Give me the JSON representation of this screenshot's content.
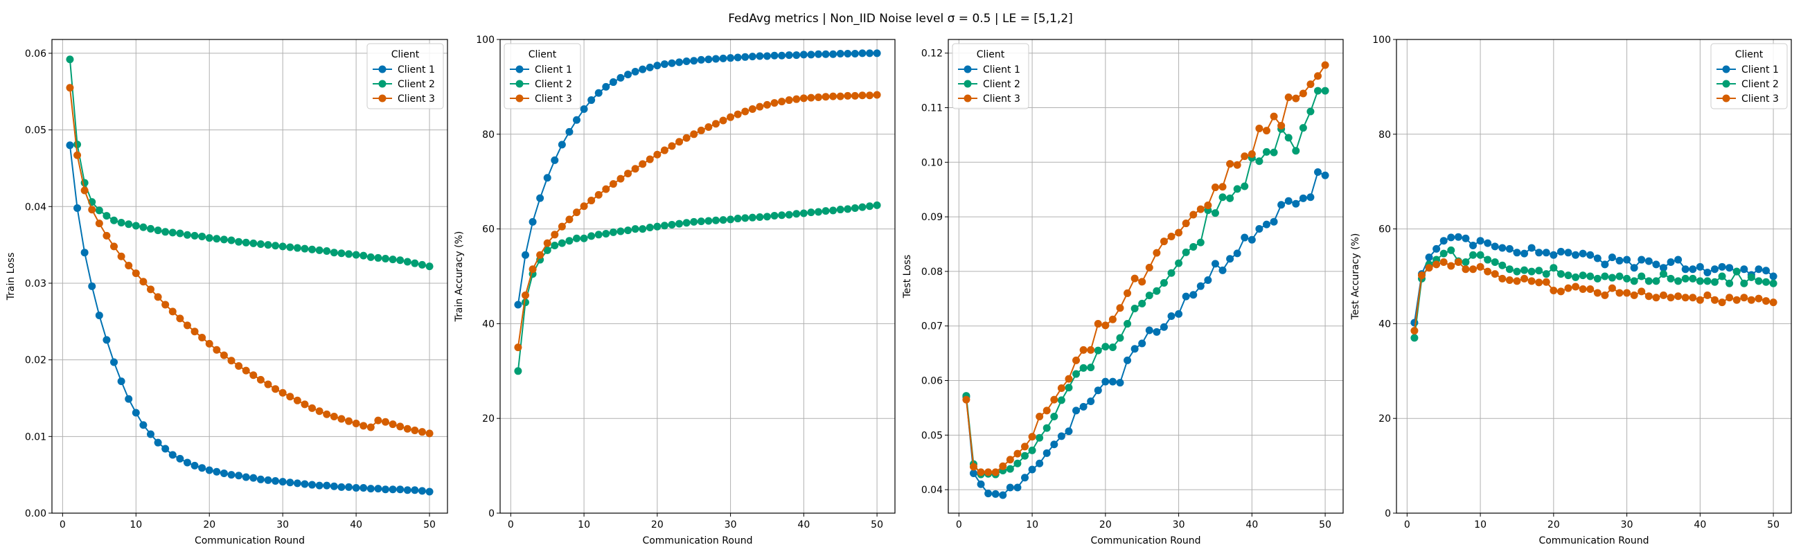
{
  "figure": {
    "title": "FedAvg metrics | Non_IID Noise level σ = 0.5 | LE = [5,1,2]"
  },
  "series_colors": {
    "Client 1": "#0072b2",
    "Client 2": "#009e73",
    "Client 3": "#d55e00"
  },
  "chart_data": [
    {
      "type": "line",
      "xlabel": "Communication Round",
      "ylabel": "Train Loss",
      "xlim": [
        -1.45,
        52.45
      ],
      "ylim": [
        0,
        0.0618
      ],
      "xticks": [
        0,
        10,
        20,
        30,
        40,
        50
      ],
      "yticks": [
        0.0,
        0.01,
        0.02,
        0.03,
        0.04,
        0.05,
        0.06
      ],
      "ytick_labels": [
        "0.00",
        "0.01",
        "0.02",
        "0.03",
        "0.04",
        "0.05",
        "0.06"
      ],
      "grid": true,
      "legend": {
        "title": "Client",
        "position": "top-right",
        "entries": [
          "Client 1",
          "Client 2",
          "Client 3"
        ]
      },
      "series": [
        {
          "name": "Client 1",
          "values": [
            0.048,
            0.0398,
            0.034,
            0.0296,
            0.0258,
            0.0226,
            0.0197,
            0.0172,
            0.0149,
            0.0131,
            0.0115,
            0.0103,
            0.0092,
            0.0084,
            0.0076,
            0.0071,
            0.0066,
            0.0062,
            0.0059,
            0.0056,
            0.0054,
            0.0052,
            0.005,
            0.0049,
            0.0047,
            0.0046,
            0.0044,
            0.0043,
            0.0042,
            0.0041,
            0.004,
            0.0039,
            0.0038,
            0.0037,
            0.0036,
            0.0036,
            0.0035,
            0.0034,
            0.0034,
            0.0033,
            0.0033,
            0.0032,
            0.0032,
            0.0031,
            0.0031,
            0.0031,
            0.003,
            0.003,
            0.0029,
            0.0028
          ]
        },
        {
          "name": "Client 2",
          "values": [
            0.0592,
            0.0481,
            0.0431,
            0.0406,
            0.0395,
            0.0388,
            0.0382,
            0.0379,
            0.0377,
            0.0375,
            0.0373,
            0.0371,
            0.0369,
            0.0367,
            0.0366,
            0.0365,
            0.0363,
            0.0362,
            0.0361,
            0.0359,
            0.0358,
            0.0357,
            0.0356,
            0.0354,
            0.0353,
            0.0352,
            0.0351,
            0.035,
            0.0349,
            0.0348,
            0.0347,
            0.0346,
            0.0345,
            0.0344,
            0.0343,
            0.0342,
            0.034,
            0.0339,
            0.0338,
            0.0337,
            0.0336,
            0.0334,
            0.0333,
            0.0332,
            0.0331,
            0.033,
            0.0328,
            0.0326,
            0.0324,
            0.0322
          ]
        },
        {
          "name": "Client 3",
          "values": [
            0.0555,
            0.0467,
            0.0421,
            0.0396,
            0.0378,
            0.0362,
            0.0348,
            0.0335,
            0.0323,
            0.0313,
            0.0302,
            0.0292,
            0.0282,
            0.0272,
            0.0263,
            0.0254,
            0.0245,
            0.0237,
            0.0229,
            0.0221,
            0.0213,
            0.0206,
            0.0199,
            0.0192,
            0.0186,
            0.018,
            0.0174,
            0.0168,
            0.0162,
            0.0157,
            0.0152,
            0.0147,
            0.0142,
            0.0137,
            0.0133,
            0.0129,
            0.0126,
            0.0123,
            0.012,
            0.0117,
            0.0114,
            0.0112,
            0.0121,
            0.0119,
            0.0116,
            0.0113,
            0.011,
            0.0108,
            0.0106,
            0.0104
          ]
        }
      ]
    },
    {
      "type": "line",
      "xlabel": "Communication Round",
      "ylabel": "Train Accuracy (%)",
      "xlim": [
        -1.45,
        52.45
      ],
      "ylim": [
        0,
        100
      ],
      "xticks": [
        0,
        10,
        20,
        30,
        40,
        50
      ],
      "yticks": [
        0,
        20,
        40,
        60,
        80,
        100
      ],
      "ytick_labels": [
        "0",
        "20",
        "40",
        "60",
        "80",
        "100"
      ],
      "grid": true,
      "legend": {
        "title": "Client",
        "position": "top-left",
        "entries": [
          "Client 1",
          "Client 2",
          "Client 3"
        ]
      },
      "series": [
        {
          "name": "Client 1",
          "values": [
            44.0,
            54.5,
            61.5,
            66.5,
            70.8,
            74.5,
            77.8,
            80.5,
            83.0,
            85.3,
            87.2,
            88.7,
            90.0,
            91.0,
            91.9,
            92.6,
            93.2,
            93.7,
            94.1,
            94.5,
            94.8,
            95.0,
            95.2,
            95.4,
            95.5,
            95.7,
            95.8,
            95.9,
            96.0,
            96.1,
            96.2,
            96.3,
            96.4,
            96.5,
            96.5,
            96.6,
            96.6,
            96.7,
            96.7,
            96.8,
            96.8,
            96.9,
            96.9,
            96.9,
            97.0,
            97.0,
            97.0,
            97.1,
            97.1,
            97.1
          ]
        },
        {
          "name": "Client 2",
          "values": [
            30.0,
            44.5,
            50.5,
            53.5,
            55.5,
            56.5,
            57.0,
            57.5,
            58.0,
            58.0,
            58.5,
            58.8,
            59.0,
            59.3,
            59.5,
            59.7,
            60.0,
            60.0,
            60.3,
            60.5,
            60.7,
            60.9,
            61.1,
            61.3,
            61.5,
            61.6,
            61.7,
            61.8,
            61.9,
            62.0,
            62.2,
            62.3,
            62.4,
            62.5,
            62.6,
            62.8,
            62.9,
            63.0,
            63.2,
            63.3,
            63.5,
            63.6,
            63.8,
            63.9,
            64.1,
            64.2,
            64.4,
            64.6,
            64.8,
            65.0
          ]
        },
        {
          "name": "Client 3",
          "values": [
            35.0,
            46.0,
            51.5,
            54.5,
            57.0,
            58.8,
            60.5,
            62.0,
            63.5,
            64.8,
            66.0,
            67.2,
            68.4,
            69.5,
            70.6,
            71.7,
            72.7,
            73.7,
            74.7,
            75.7,
            76.6,
            77.5,
            78.4,
            79.2,
            80.0,
            80.8,
            81.5,
            82.2,
            82.9,
            83.6,
            84.2,
            84.8,
            85.3,
            85.8,
            86.2,
            86.6,
            86.9,
            87.2,
            87.4,
            87.6,
            87.7,
            87.8,
            87.9,
            88.0,
            88.0,
            88.1,
            88.1,
            88.2,
            88.2,
            88.3
          ]
        }
      ]
    },
    {
      "type": "line",
      "xlabel": "Communication Round",
      "ylabel": "Test Loss",
      "xlim": [
        -1.45,
        52.45
      ],
      "ylim": [
        0.0357,
        0.1225
      ],
      "xticks": [
        0,
        10,
        20,
        30,
        40,
        50
      ],
      "yticks": [
        0.04,
        0.05,
        0.06,
        0.07,
        0.08,
        0.09,
        0.1,
        0.11,
        0.12
      ],
      "ytick_labels": [
        "0.04",
        "0.05",
        "0.06",
        "0.07",
        "0.08",
        "0.09",
        "0.10",
        "0.11",
        "0.12"
      ],
      "grid": true,
      "legend": {
        "title": "Client",
        "position": "top-left",
        "entries": [
          "Client 1",
          "Client 2",
          "Client 3"
        ]
      },
      "series": [
        {
          "name": "Client 1",
          "values": [
            0.057,
            0.043,
            0.041,
            0.0393,
            0.0392,
            0.039,
            0.0404,
            0.0404,
            0.0422,
            0.0437,
            0.0448,
            0.0467,
            0.0483,
            0.0498,
            0.0507,
            0.0545,
            0.0552,
            0.0562,
            0.0582,
            0.0598,
            0.0598,
            0.0596,
            0.0637,
            0.0658,
            0.0668,
            0.0692,
            0.0689,
            0.0698,
            0.0718,
            0.0722,
            0.0754,
            0.0757,
            0.0773,
            0.0784,
            0.0814,
            0.0802,
            0.0823,
            0.0833,
            0.0862,
            0.0858,
            0.0878,
            0.0886,
            0.0891,
            0.0922,
            0.0929,
            0.0924,
            0.0934,
            0.0936,
            0.0982,
            0.0976
          ]
        },
        {
          "name": "Client 2",
          "values": [
            0.0572,
            0.0447,
            0.0428,
            0.0429,
            0.0428,
            0.0435,
            0.0438,
            0.0448,
            0.0462,
            0.0472,
            0.0495,
            0.0513,
            0.0534,
            0.0564,
            0.0587,
            0.0612,
            0.0623,
            0.0624,
            0.0655,
            0.0662,
            0.0661,
            0.0678,
            0.0704,
            0.0732,
            0.0741,
            0.0756,
            0.0764,
            0.0779,
            0.0797,
            0.0815,
            0.0835,
            0.0845,
            0.0853,
            0.0912,
            0.0907,
            0.0936,
            0.0934,
            0.0951,
            0.0956,
            0.1008,
            0.1002,
            0.1019,
            0.1018,
            0.1061,
            0.1045,
            0.1021,
            0.1063,
            0.1093,
            0.1131,
            0.1131
          ]
        },
        {
          "name": "Client 3",
          "values": [
            0.0565,
            0.0442,
            0.0432,
            0.0432,
            0.0432,
            0.0443,
            0.0455,
            0.0466,
            0.0479,
            0.0497,
            0.0534,
            0.0545,
            0.0565,
            0.0586,
            0.0603,
            0.0637,
            0.0656,
            0.0656,
            0.0704,
            0.0701,
            0.0712,
            0.0733,
            0.076,
            0.0787,
            0.0781,
            0.0807,
            0.0834,
            0.0855,
            0.0864,
            0.0871,
            0.0888,
            0.0904,
            0.0914,
            0.0921,
            0.0954,
            0.0955,
            0.0997,
            0.0995,
            0.1011,
            0.1015,
            0.1062,
            0.1058,
            0.1084,
            0.1067,
            0.1119,
            0.1117,
            0.1126,
            0.1143,
            0.1158,
            0.1178
          ]
        }
      ]
    },
    {
      "type": "line",
      "xlabel": "Communication Round",
      "ylabel": "Test Accuracy (%)",
      "xlim": [
        -1.45,
        52.45
      ],
      "ylim": [
        0,
        100
      ],
      "xticks": [
        0,
        10,
        20,
        30,
        40,
        50
      ],
      "yticks": [
        0,
        20,
        40,
        60,
        80,
        100
      ],
      "ytick_labels": [
        "0",
        "20",
        "40",
        "60",
        "80",
        "100"
      ],
      "grid": true,
      "legend": {
        "title": "Client",
        "position": "top-right",
        "entries": [
          "Client 1",
          "Client 2",
          "Client 3"
        ]
      },
      "series": [
        {
          "name": "Client 1",
          "values": [
            40.2,
            50.5,
            54.0,
            55.8,
            57.5,
            58.2,
            58.3,
            58.0,
            56.5,
            57.5,
            57.0,
            56.3,
            56.0,
            55.8,
            55.0,
            54.8,
            56.0,
            55.0,
            55.0,
            54.5,
            55.2,
            55.0,
            54.5,
            54.8,
            54.5,
            53.8,
            52.5,
            54.0,
            53.3,
            53.5,
            51.8,
            53.5,
            53.2,
            52.5,
            51.8,
            53.0,
            53.5,
            51.5,
            51.5,
            52.0,
            50.8,
            51.5,
            52.0,
            51.8,
            51.0,
            51.5,
            50.3,
            51.5,
            51.2,
            50.0
          ]
        },
        {
          "name": "Client 2",
          "values": [
            37.0,
            49.5,
            52.5,
            53.5,
            54.8,
            55.5,
            53.2,
            53.0,
            54.5,
            54.5,
            53.5,
            53.0,
            52.3,
            51.5,
            51.0,
            51.3,
            51.0,
            51.2,
            50.5,
            51.8,
            50.5,
            50.2,
            49.8,
            50.2,
            50.0,
            49.5,
            50.0,
            49.7,
            50.0,
            49.5,
            49.0,
            50.0,
            49.0,
            49.0,
            50.5,
            49.5,
            49.0,
            49.5,
            49.5,
            49.0,
            49.0,
            48.8,
            50.0,
            48.5,
            51.0,
            48.5,
            49.8,
            49.0,
            48.8,
            48.5
          ]
        },
        {
          "name": "Client 3",
          "values": [
            38.5,
            50.2,
            51.8,
            52.5,
            53.0,
            52.2,
            53.0,
            51.5,
            51.5,
            52.0,
            51.0,
            50.5,
            49.5,
            49.2,
            49.0,
            49.5,
            49.0,
            48.7,
            48.8,
            47.0,
            46.8,
            47.5,
            47.8,
            47.3,
            47.3,
            46.5,
            46.0,
            47.5,
            46.5,
            46.5,
            46.0,
            46.8,
            45.8,
            45.5,
            46.0,
            45.5,
            45.8,
            45.5,
            45.5,
            45.0,
            46.0,
            45.0,
            44.5,
            45.5,
            45.0,
            45.5,
            45.0,
            45.3,
            44.8,
            44.5
          ]
        }
      ]
    }
  ]
}
